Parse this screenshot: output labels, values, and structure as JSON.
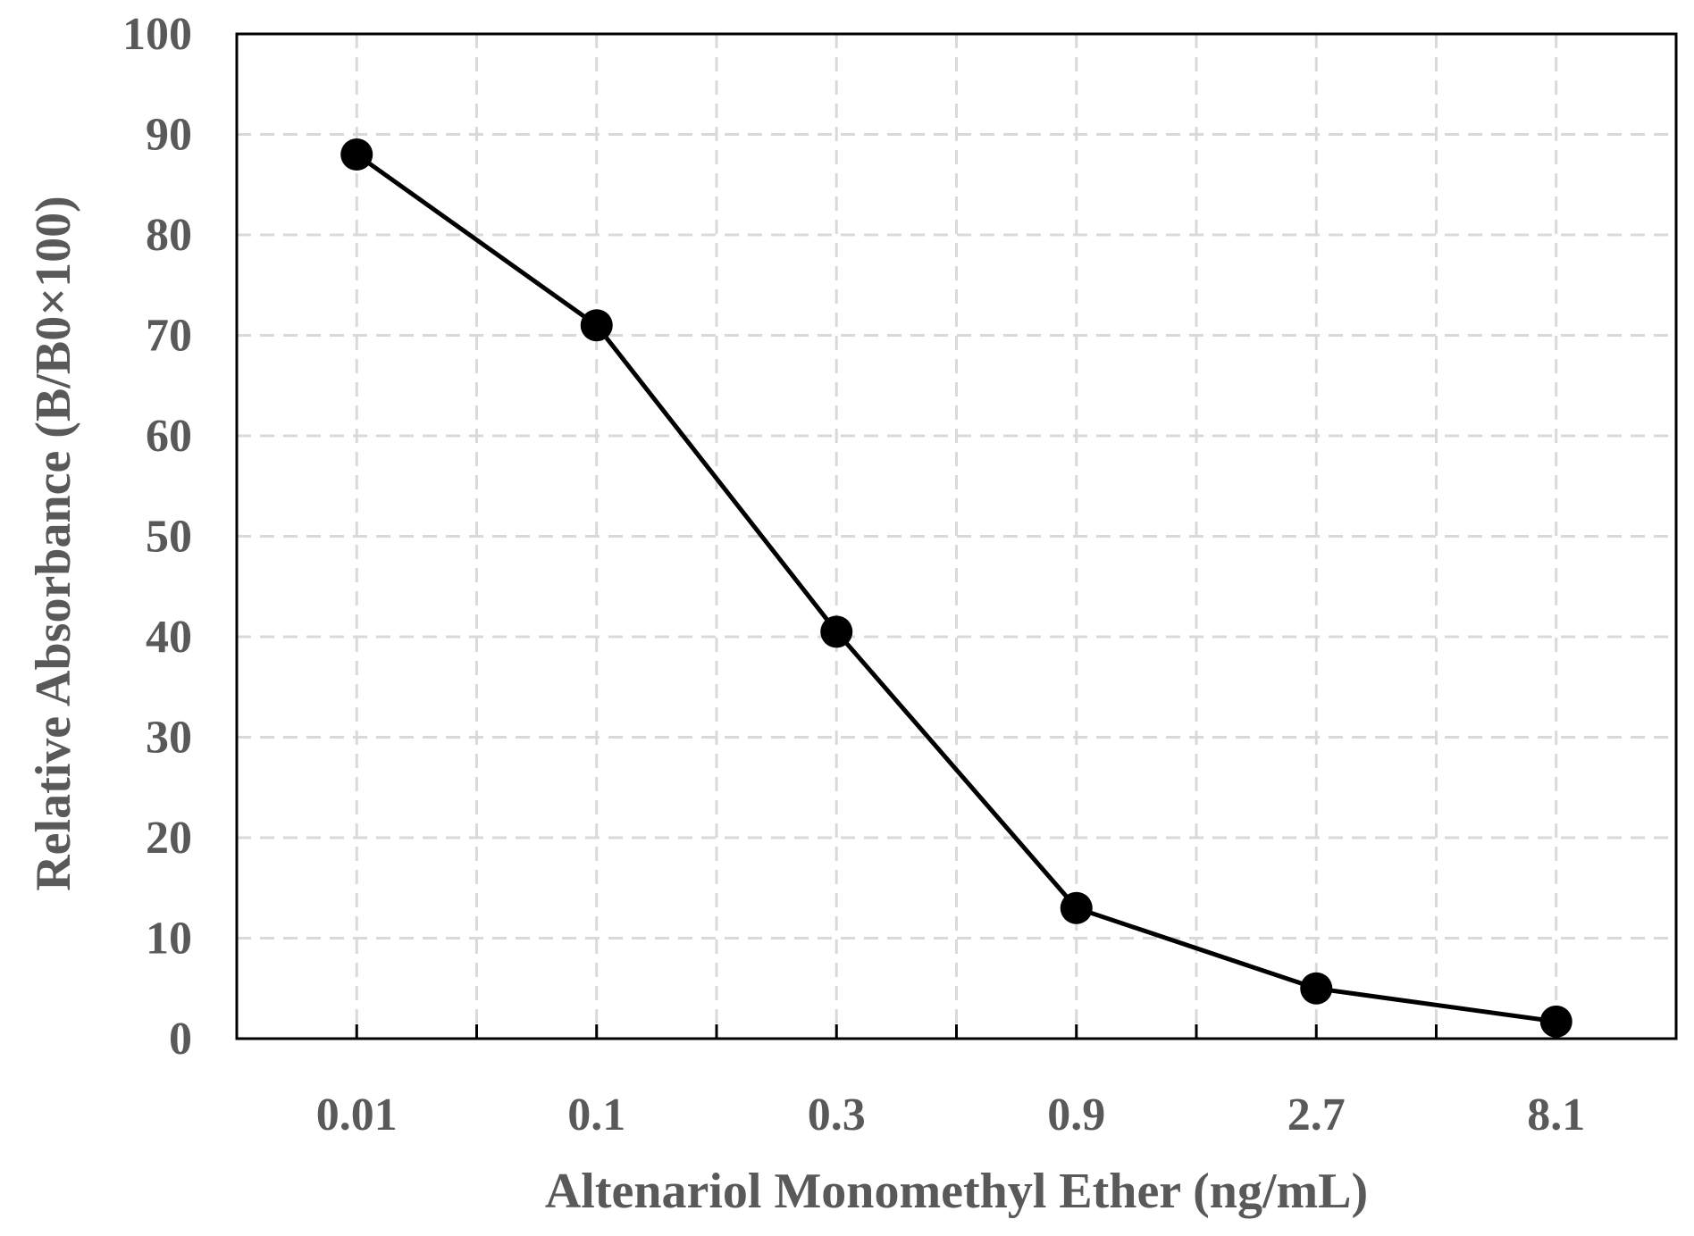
{
  "chart_data": {
    "type": "line",
    "title": "",
    "xlabel": "Altenariol Monomethyl Ether (ng/mL)",
    "ylabel": "Relative Absorbance (B/B0×100)",
    "categories": [
      "0.01",
      "0.1",
      "0.3",
      "0.9",
      "2.7",
      "8.1"
    ],
    "series": [
      {
        "name": "Relative Absorbance",
        "values": [
          88,
          71,
          40.5,
          13,
          5,
          1.7
        ]
      }
    ],
    "ylim": [
      0,
      100
    ],
    "yticks": [
      0,
      10,
      20,
      30,
      40,
      50,
      60,
      70,
      80,
      90,
      100
    ],
    "grid": true,
    "legend": "none",
    "colors": {
      "line": "#000000",
      "marker": "#000000",
      "grid": "#d9d9d9",
      "text": "#595959"
    }
  }
}
